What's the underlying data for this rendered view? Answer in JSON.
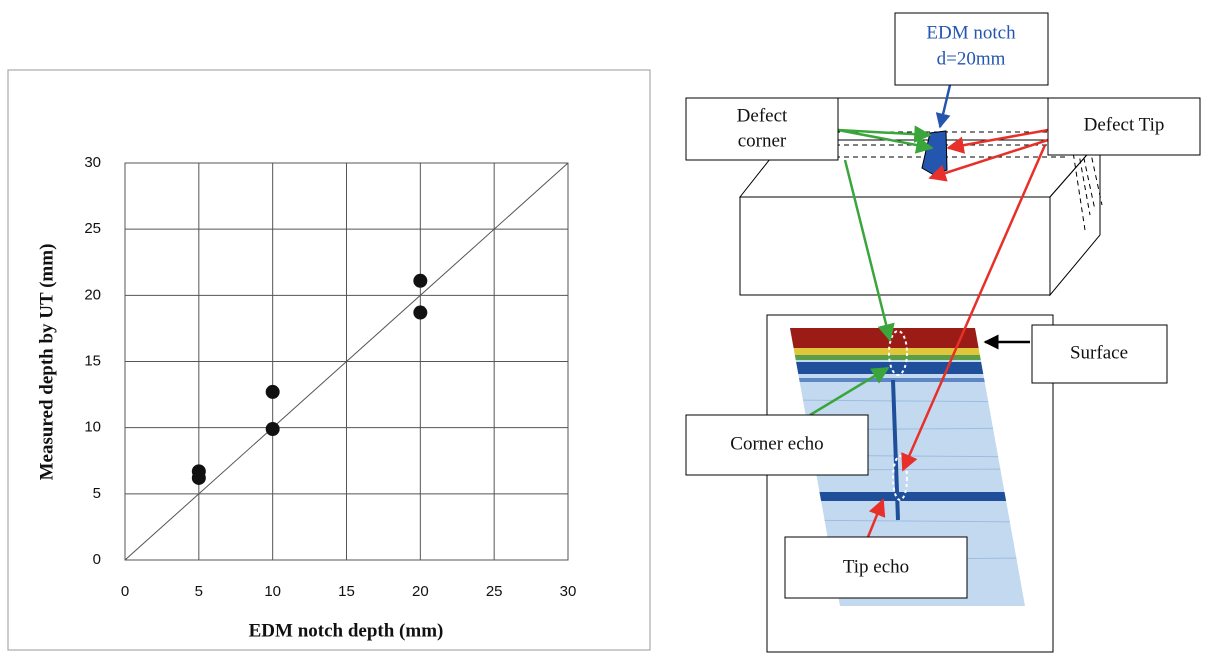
{
  "chart_data": {
    "type": "scatter",
    "x_label": "EDM notch depth (mm)",
    "y_label": "Measured depth by UT (mm)",
    "x": [
      5,
      5,
      10,
      10,
      20,
      20
    ],
    "y": [
      6.7,
      6.2,
      12.7,
      9.9,
      21.1,
      18.7
    ],
    "color": "#111111",
    "xlim": [
      0,
      30
    ],
    "ylim": [
      0,
      30
    ],
    "xticks": [
      0,
      5,
      10,
      15,
      20,
      25,
      30
    ],
    "yticks": [
      0,
      5,
      10,
      15,
      20,
      25,
      30
    ],
    "grid": true
  },
  "diagram": {
    "notch_label": [
      "EDM notch",
      "d=20mm"
    ],
    "defect_corner": [
      "Defect",
      "corner"
    ],
    "defect_tip": "Defect Tip",
    "surface": "Surface",
    "corner_echo": "Corner echo",
    "tip_echo": "Tip echo"
  }
}
